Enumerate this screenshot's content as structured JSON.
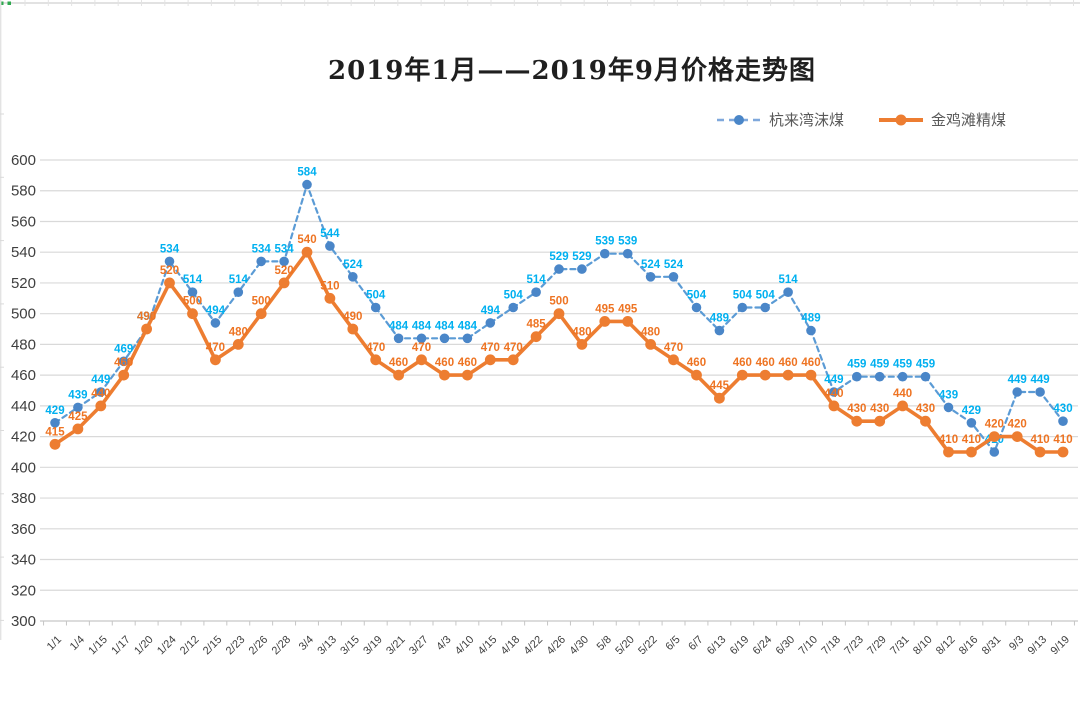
{
  "title": "2019年1月——2019年9月价格走势图",
  "legend": [
    {
      "label": "杭来湾沫煤",
      "line_style": "dashed",
      "line_color": "#7FA8DC",
      "marker_color": "#4A86C8"
    },
    {
      "label": "金鸡滩精煤",
      "line_style": "solid",
      "line_color": "#ED7D31",
      "marker_color": "#ED7D31"
    }
  ],
  "chart_data": {
    "type": "line",
    "title": "2019年1月——2019年9月价格走势图",
    "categories": [
      "1/1",
      "1/4",
      "1/15",
      "1/17",
      "1/20",
      "1/24",
      "2/12",
      "2/15",
      "2/23",
      "2/26",
      "2/28",
      "3/4",
      "3/13",
      "3/15",
      "3/19",
      "3/21",
      "3/27",
      "4/3",
      "4/10",
      "4/15",
      "4/18",
      "4/22",
      "4/26",
      "4/30",
      "5/8",
      "5/20",
      "5/22",
      "6/5",
      "6/7",
      "6/13",
      "6/19",
      "6/24",
      "6/30",
      "7/10",
      "7/18",
      "7/23",
      "7/29",
      "7/31",
      "8/10",
      "8/12",
      "8/16",
      "8/31",
      "9/3",
      "9/13",
      "9/19"
    ],
    "series": [
      {
        "name": "杭来湾沫煤",
        "values": [
          429,
          439,
          449,
          469,
          490,
          534,
          514,
          494,
          514,
          534,
          534,
          584,
          544,
          524,
          504,
          484,
          484,
          484,
          484,
          494,
          504,
          514,
          529,
          529,
          539,
          539,
          524,
          524,
          504,
          489,
          504,
          504,
          514,
          489,
          449,
          459,
          459,
          459,
          459,
          439,
          429,
          410,
          449,
          449,
          430
        ],
        "line_style": "dashed",
        "line_color": "#5B9BD5",
        "marker_color": "#4A86C8",
        "label_color": "#00B0F0"
      },
      {
        "name": "金鸡滩精煤",
        "values": [
          415,
          425,
          440,
          460,
          490,
          520,
          500,
          470,
          480,
          500,
          520,
          540,
          510,
          490,
          470,
          460,
          470,
          460,
          460,
          470,
          470,
          485,
          500,
          480,
          495,
          495,
          480,
          470,
          460,
          445,
          460,
          460,
          460,
          460,
          440,
          430,
          430,
          440,
          430,
          410,
          410,
          420,
          420,
          410,
          410
        ],
        "line_style": "solid",
        "line_color": "#ED7D31",
        "marker_color": "#ED7D31",
        "label_color": "#EE7423"
      }
    ],
    "xlabel": "",
    "ylabel": "",
    "ylim": [
      300,
      600
    ],
    "y_step": 20,
    "y_ticks": [
      300,
      320,
      340,
      360,
      380,
      400,
      420,
      440,
      460,
      480,
      500,
      520,
      540,
      560,
      580,
      600
    ],
    "grid": true,
    "data_labels": true,
    "legend_position": "top-right"
  },
  "colors": {
    "grid": "#D9D9D9",
    "axis": "#C6C6C6",
    "axis_text": "#3F3F3F",
    "title_text": "#1F1F1F",
    "legend_text": "#595959",
    "excel_green": "#2EA84E",
    "background": "#FFFFFF"
  }
}
